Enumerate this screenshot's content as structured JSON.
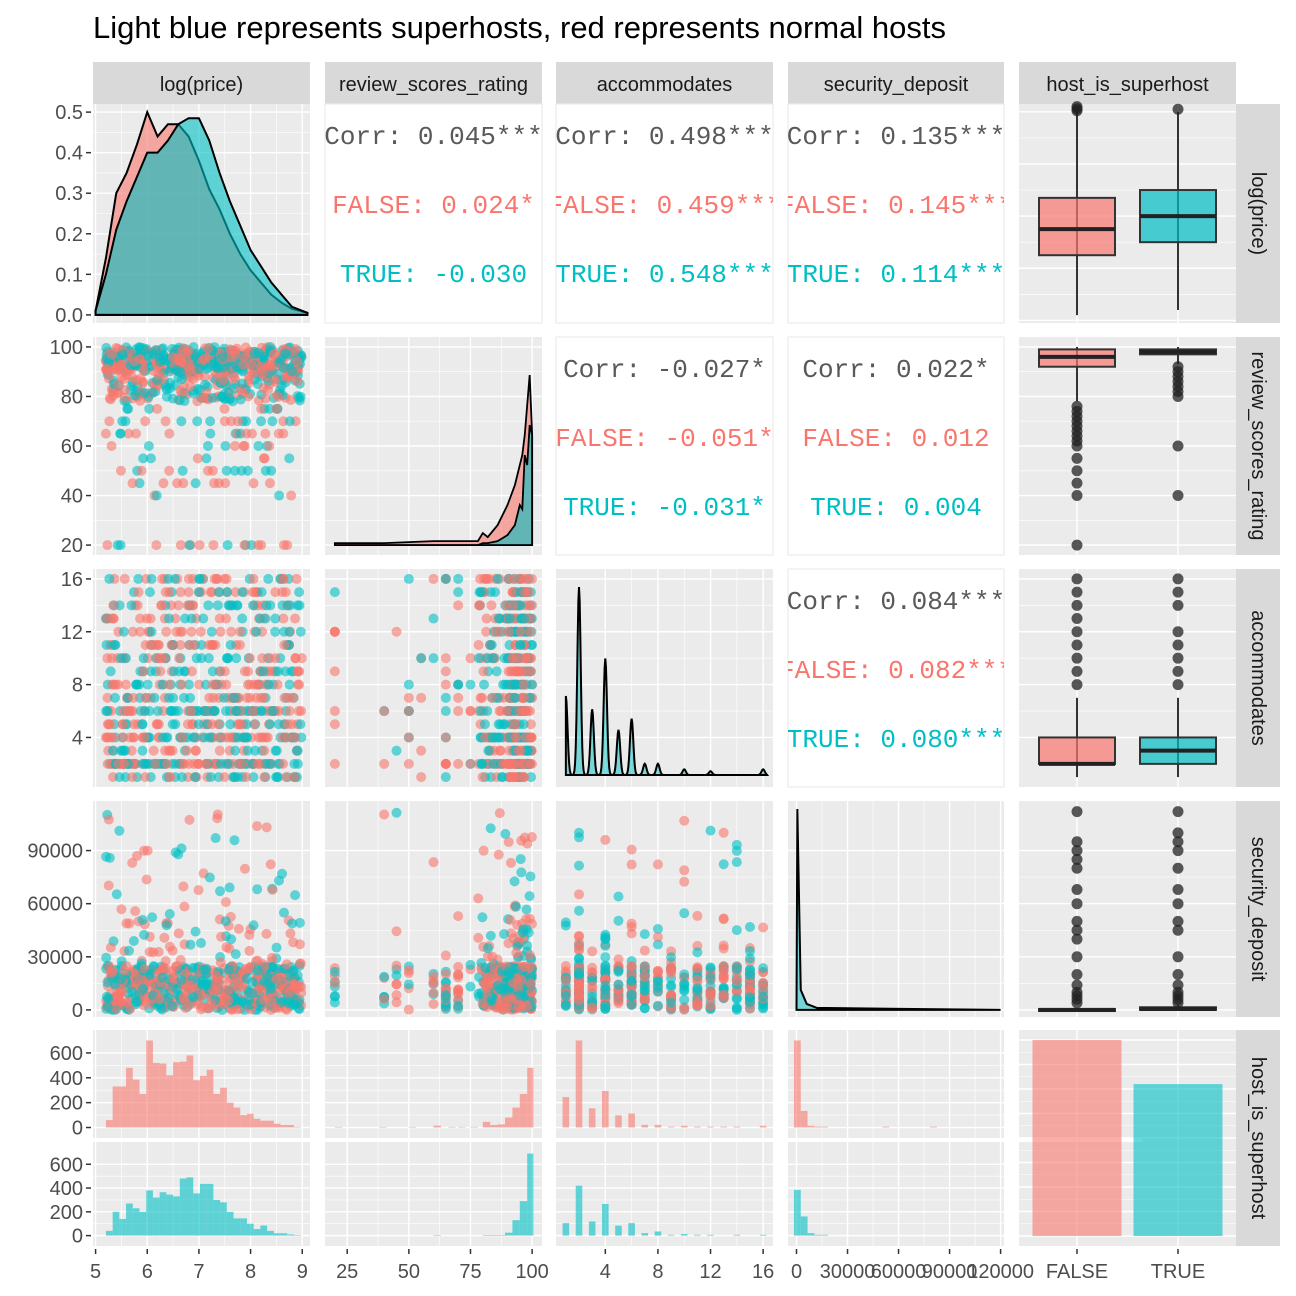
{
  "title": "Light blue represents superhosts, red represents normal hosts",
  "colors": {
    "false_group": "#F8766D",
    "true_group": "#00BFC4",
    "panel_bg": "#EBEBEB",
    "strip_bg": "#D9D9D9",
    "grid": "#FFFFFF",
    "text_dark": "#4D4D4D",
    "outlier": "#333333"
  },
  "chart_data": {
    "type": "pairs-matrix",
    "title": "Light blue represents superhosts, red represents normal hosts",
    "variables": [
      "log(price)",
      "review_scores_rating",
      "accommodates",
      "security_deposit",
      "host_is_superhost"
    ],
    "column_strips": [
      "log(price)",
      "review_scores_rating",
      "accommodates",
      "security_deposit",
      "host_is_superhost"
    ],
    "row_strips": [
      "log(price)",
      "review_scores_rating",
      "accommodates",
      "security_deposit",
      "host_is_superhost"
    ],
    "groups": [
      "FALSE",
      "TRUE"
    ],
    "x_axes": [
      {
        "ticks": [
          5,
          6,
          7,
          8,
          9
        ],
        "labels": [
          "5",
          "6",
          "7",
          "8",
          "9"
        ],
        "range": [
          4.95,
          9.15
        ]
      },
      {
        "ticks": [
          25,
          50,
          75,
          100
        ],
        "labels": [
          "25",
          "50",
          "75",
          "100"
        ],
        "range": [
          16,
          104
        ]
      },
      {
        "ticks": [
          4,
          8,
          12,
          16
        ],
        "labels": [
          "4",
          "8",
          "12",
          "16"
        ],
        "range": [
          0.25,
          16.75
        ]
      },
      {
        "ticks": [
          0,
          30000,
          60000,
          90000,
          120000
        ],
        "labels": [
          "0",
          "30000",
          "60000",
          "90000",
          "120000"
        ],
        "range": [
          -5000,
          122000
        ]
      },
      {
        "ticks": [
          "FALSE",
          "TRUE"
        ],
        "labels": [
          "FALSE",
          "TRUE"
        ]
      }
    ],
    "y_axes": [
      {
        "ticks": [
          0.0,
          0.1,
          0.2,
          0.3,
          0.4,
          0.5
        ],
        "labels": [
          "0.0",
          "0.1",
          "0.2",
          "0.3",
          "0.4",
          "0.5"
        ],
        "range": [
          -0.02,
          0.52
        ]
      },
      {
        "ticks": [
          20,
          40,
          60,
          80,
          100
        ],
        "labels": [
          "20",
          "40",
          "60",
          "80",
          "100"
        ],
        "range": [
          16,
          104
        ]
      },
      {
        "ticks": [
          4,
          8,
          12,
          16
        ],
        "labels": [
          "4",
          "8",
          "12",
          "16"
        ],
        "range": [
          0.25,
          16.75
        ]
      },
      {
        "ticks": [
          0,
          30000,
          60000,
          90000
        ],
        "labels": [
          "0",
          "30000",
          "60000",
          "90000"
        ],
        "range": [
          -4000,
          118000
        ]
      },
      {
        "ticks": [
          0,
          200,
          400,
          600
        ],
        "labels": [
          "0",
          "200",
          "400",
          "600"
        ],
        "range": [
          -20,
          720
        ]
      }
    ],
    "correlations": [
      {
        "row": 0,
        "col": 1,
        "lines": [
          {
            "text": "Corr: 0.045***",
            "group": "all"
          },
          {
            "text": "FALSE: 0.024*",
            "group": "FALSE"
          },
          {
            "text": "TRUE: -0.030",
            "group": "TRUE"
          }
        ]
      },
      {
        "row": 0,
        "col": 2,
        "lines": [
          {
            "text": "Corr: 0.498***",
            "group": "all"
          },
          {
            "text": "FALSE: 0.459***",
            "group": "FALSE"
          },
          {
            "text": "TRUE: 0.548***",
            "group": "TRUE"
          }
        ]
      },
      {
        "row": 0,
        "col": 3,
        "lines": [
          {
            "text": "Corr: 0.135***",
            "group": "all"
          },
          {
            "text": "FALSE: 0.145***",
            "group": "FALSE"
          },
          {
            "text": "TRUE: 0.114***",
            "group": "TRUE"
          }
        ]
      },
      {
        "row": 1,
        "col": 2,
        "lines": [
          {
            "text": "Corr: -0.027*",
            "group": "all"
          },
          {
            "text": "FALSE: -0.051*",
            "group": "FALSE"
          },
          {
            "text": "TRUE: -0.031*",
            "group": "TRUE"
          }
        ]
      },
      {
        "row": 1,
        "col": 3,
        "lines": [
          {
            "text": "Corr: 0.022*",
            "group": "all"
          },
          {
            "text": "FALSE: 0.012",
            "group": "FALSE"
          },
          {
            "text": "TRUE: 0.004",
            "group": "TRUE"
          }
        ]
      },
      {
        "row": 2,
        "col": 3,
        "lines": [
          {
            "text": "Corr: 0.084***",
            "group": "all"
          },
          {
            "text": "FALSE: 0.082***",
            "group": "FALSE"
          },
          {
            "text": "TRUE: 0.080***",
            "group": "TRUE"
          }
        ]
      }
    ],
    "density_logprice": {
      "x": [
        5.0,
        5.2,
        5.4,
        5.6,
        5.8,
        6.0,
        6.2,
        6.4,
        6.6,
        6.8,
        7.0,
        7.2,
        7.4,
        7.6,
        7.8,
        8.0,
        8.2,
        8.4,
        8.6,
        8.8,
        9.1
      ],
      "FALSE": [
        0.01,
        0.14,
        0.3,
        0.35,
        0.42,
        0.5,
        0.44,
        0.47,
        0.47,
        0.44,
        0.38,
        0.31,
        0.26,
        0.2,
        0.15,
        0.11,
        0.08,
        0.05,
        0.03,
        0.015,
        0.005
      ],
      "TRUE": [
        0.01,
        0.1,
        0.21,
        0.28,
        0.34,
        0.4,
        0.4,
        0.43,
        0.47,
        0.485,
        0.485,
        0.43,
        0.35,
        0.28,
        0.22,
        0.16,
        0.12,
        0.08,
        0.05,
        0.02,
        0.005
      ]
    },
    "density_review": {
      "x": [
        20,
        40,
        60,
        78,
        80,
        82,
        86,
        90,
        93,
        95,
        96,
        97,
        98,
        99,
        100
      ],
      "FALSE_rel": [
        0.01,
        0.01,
        0.02,
        0.02,
        0.06,
        0.04,
        0.1,
        0.2,
        0.3,
        0.4,
        0.45,
        0.55,
        0.7,
        0.85,
        0.55
      ],
      "TRUE_rel": [
        0.0,
        0.0,
        0.0,
        0.0,
        0.01,
        0.01,
        0.02,
        0.05,
        0.1,
        0.2,
        0.18,
        0.45,
        0.4,
        0.6,
        0.55
      ]
    },
    "density_accommodates": {
      "peaks": [
        1,
        2,
        3,
        4,
        5,
        6,
        7,
        8,
        10,
        12,
        16
      ],
      "rel_height": [
        0.42,
        1.0,
        0.35,
        0.62,
        0.24,
        0.3,
        0.06,
        0.06,
        0.03,
        0.02,
        0.03
      ]
    },
    "density_security": {
      "peak_at": 0,
      "tail_until": 120000
    },
    "boxplots": {
      "log_price": {
        "FALSE": {
          "q1": 6.25,
          "median": 6.75,
          "q3": 7.35,
          "lo": 5.1,
          "hi": 9.0
        },
        "TRUE": {
          "q1": 6.5,
          "median": 7.0,
          "q3": 7.5,
          "lo": 5.2,
          "hi": 9.0
        }
      },
      "review_scores_rating": {
        "FALSE": {
          "q1": 92,
          "median": 96,
          "q3": 99,
          "lo": 78,
          "hi": 100
        },
        "TRUE": {
          "q1": 97,
          "median": 98,
          "q3": 99,
          "lo": 93,
          "hi": 100
        }
      },
      "accommodates": {
        "FALSE": {
          "q1": 2,
          "median": 2,
          "q3": 4,
          "lo": 1,
          "hi": 7
        },
        "TRUE": {
          "q1": 2,
          "median": 3,
          "q3": 4,
          "lo": 1,
          "hi": 7
        }
      },
      "security_deposit": {
        "FALSE": {
          "q1": 0,
          "median": 0,
          "q3": 500,
          "lo": 0,
          "hi": 1000
        },
        "TRUE": {
          "q1": 0,
          "median": 500,
          "q3": 1500,
          "lo": 0,
          "hi": 3000
        }
      }
    },
    "superhost_counts": {
      "categories": [
        "FALSE",
        "TRUE"
      ],
      "relative": [
        1.0,
        0.775
      ]
    },
    "hist_logprice": {
      "bin_start": 5.2,
      "bin_width": 0.13,
      "FALSE": [
        60,
        330,
        330,
        480,
        385,
        270,
        700,
        520,
        515,
        420,
        525,
        530,
        580,
        380,
        415,
        465,
        270,
        320,
        200,
        160,
        100,
        110,
        70,
        55,
        55,
        30,
        20,
        20,
        5
      ],
      "TRUE": [
        40,
        200,
        140,
        270,
        230,
        200,
        380,
        320,
        365,
        345,
        330,
        480,
        490,
        355,
        435,
        435,
        300,
        280,
        200,
        145,
        145,
        100,
        55,
        85,
        40,
        20,
        20,
        10,
        5
      ]
    },
    "hist_review": {
      "bins": [
        20,
        38,
        50,
        60,
        66,
        70,
        75,
        80,
        83,
        86,
        89,
        92,
        95,
        98
      ],
      "FALSE": [
        5,
        5,
        5,
        15,
        5,
        5,
        5,
        45,
        20,
        25,
        80,
        160,
        270,
        480
      ],
      "TRUE": [
        0,
        0,
        0,
        5,
        0,
        0,
        0,
        5,
        5,
        5,
        25,
        130,
        290,
        690
      ]
    },
    "hist_accommodates": {
      "values": [
        1,
        2,
        3,
        4,
        5,
        6,
        7,
        8,
        9,
        10,
        11,
        12,
        13,
        14,
        16
      ],
      "FALSE": [
        0.35,
        1.0,
        0.22,
        0.42,
        0.14,
        0.16,
        0.03,
        0.03,
        0.01,
        0.02,
        0.01,
        0.01,
        0.01,
        0.01,
        0.02
      ],
      "TRUE": [
        0.15,
        0.6,
        0.17,
        0.38,
        0.12,
        0.15,
        0.03,
        0.05,
        0.01,
        0.02,
        0.01,
        0.01,
        0.0,
        0.01,
        0.01
      ]
    },
    "hist_security": {
      "bin_width": 4000,
      "FALSE": [
        1.0,
        0.19,
        0.02,
        0.01,
        0.01,
        0.0,
        0.0,
        0.0,
        0.0,
        0.0,
        0.0,
        0.0,
        0.0,
        0.01,
        0.0,
        0.0,
        0.0,
        0.0,
        0.0,
        0.0,
        0.01
      ],
      "TRUE": [
        0.55,
        0.23,
        0.03,
        0.01,
        0.01,
        0.0,
        0.0,
        0.0,
        0.0,
        0.0,
        0.0,
        0.0,
        0.0,
        0.0,
        0.0,
        0.0,
        0.0,
        0.0,
        0.0,
        0.0,
        0.0
      ]
    }
  }
}
